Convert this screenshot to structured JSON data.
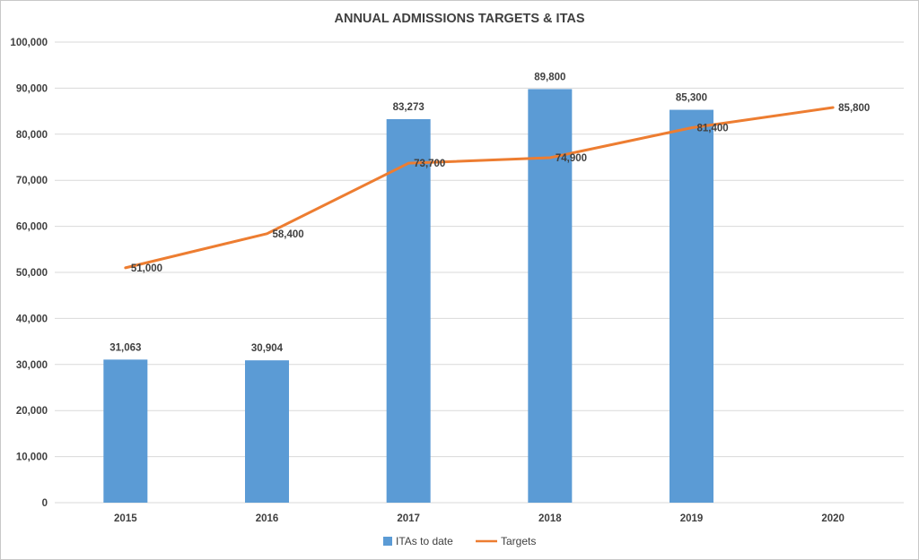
{
  "chart_data": {
    "type": "bar",
    "title": "ANNUAL ADMISSIONS TARGETS & ITAS",
    "categories": [
      "2015",
      "2016",
      "2017",
      "2018",
      "2019",
      "2020"
    ],
    "ylim": [
      0,
      100000
    ],
    "yticks": [
      "0",
      "10,000",
      "20,000",
      "30,000",
      "40,000",
      "50,000",
      "60,000",
      "70,000",
      "80,000",
      "90,000",
      "100,000"
    ],
    "ytick_values": [
      0,
      10000,
      20000,
      30000,
      40000,
      50000,
      60000,
      70000,
      80000,
      90000,
      100000
    ],
    "grid": true,
    "legend_position": "bottom",
    "series": [
      {
        "name": "ITAs to date",
        "type": "bar",
        "color": "#5b9bd5",
        "values": [
          31063,
          30904,
          83273,
          89800,
          85300,
          null
        ],
        "labels": [
          "31,063",
          "30,904",
          "83,273",
          "89,800",
          "85,300",
          ""
        ]
      },
      {
        "name": "Targets",
        "type": "line",
        "color": "#ed7d31",
        "values": [
          51000,
          58400,
          73700,
          74900,
          81400,
          85800
        ],
        "labels": [
          "51,000",
          "58,400",
          "73,700",
          "74,900",
          "81,400",
          "85,800"
        ]
      }
    ]
  }
}
